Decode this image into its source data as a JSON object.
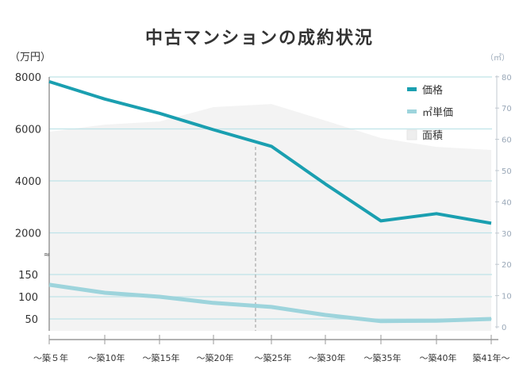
{
  "chart_data": {
    "type": "line",
    "title": "中古マンションの成約状況",
    "left_unit": "（万円）",
    "right_unit": "（㎡）",
    "categories": [
      "～築５年",
      "～築10年",
      "～築15年",
      "～築20年",
      "～築25年",
      "～築30年",
      "～築35年",
      "～築40年",
      "築41年～"
    ],
    "left_axis_upper": {
      "ticks": [
        2000,
        4000,
        6000,
        8000
      ],
      "range": [
        2000,
        8000
      ]
    },
    "left_axis_lower": {
      "ticks": [
        50,
        100,
        150
      ],
      "range": [
        50,
        150
      ]
    },
    "right_axis": {
      "ticks": [
        0,
        10,
        20,
        30,
        40,
        50,
        60,
        70,
        80
      ],
      "range": [
        0,
        80
      ]
    },
    "axis_break": true,
    "grid": true,
    "legend_position": "top-right",
    "series": [
      {
        "name": "価格",
        "axis": "left-upper",
        "type": "line",
        "color": "#1a9fb0",
        "values": [
          7820,
          7150,
          6600,
          5970,
          5330,
          3880,
          2460,
          2740,
          2370
        ]
      },
      {
        "name": "㎡単価",
        "axis": "left-lower",
        "type": "line",
        "color": "#9dd4dc",
        "values": [
          127,
          109,
          100,
          86,
          77,
          59,
          45,
          46,
          50
        ]
      },
      {
        "name": "面積",
        "axis": "right",
        "type": "area",
        "color": "#f3f3f3",
        "values": [
          62.4,
          64.7,
          65.7,
          70.3,
          71.3,
          66,
          60.4,
          57.6,
          56.6
        ]
      }
    ]
  }
}
